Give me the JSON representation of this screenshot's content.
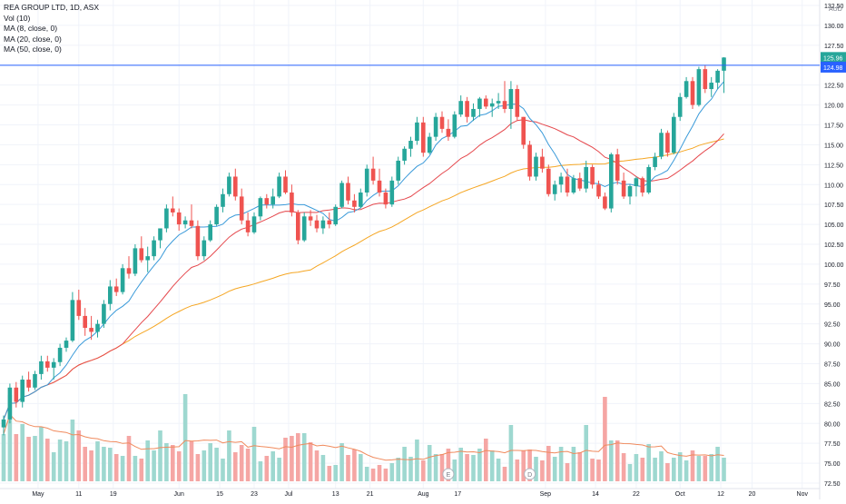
{
  "legend": {
    "symbol": "REA GROUP LTD, 1D, ASX",
    "volume": "Vol (10)",
    "ma8": "MA (8, close, 0)",
    "ma20": "MA (20, close, 0)",
    "ma50": "MA (50, close, 0)"
  },
  "chart_data": {
    "type": "candlestick",
    "currency": "AUD",
    "price_axis_ticks": [
      "72.50",
      "75.00",
      "77.50",
      "80.00",
      "82.50",
      "85.00",
      "87.50",
      "90.00",
      "92.50",
      "95.00",
      "97.50",
      "100.00",
      "102.50",
      "105.00",
      "107.50",
      "110.00",
      "112.50",
      "115.00",
      "117.50",
      "120.00",
      "122.50",
      "125.00",
      "127.50",
      "130.00",
      "132.50"
    ],
    "ylim": [
      72.5,
      132.5
    ],
    "time_axis_ticks": [
      "May",
      "11",
      "19",
      "Jun",
      "15",
      "23",
      "Jul",
      "13",
      "21",
      "Aug",
      "17",
      "Sep",
      "14",
      "22",
      "Oct",
      "12",
      "20",
      "Nov"
    ],
    "last_price_label": "125.96",
    "crosshair_price_label": "124.98",
    "crosshair_price": 124.98,
    "last_close": 125.96,
    "event_markers": [
      {
        "label": "E",
        "date": "Aug 07"
      },
      {
        "label": "D",
        "date": "Aug 27"
      }
    ],
    "volume_axis_ticks": [],
    "series": [
      {
        "name": "MA (8, close, 0)",
        "color": "#3a9ad9"
      },
      {
        "name": "MA (20, close, 0)",
        "color": "#e5484d"
      },
      {
        "name": "MA (50, close, 0)",
        "color": "#f5a623"
      }
    ],
    "candles": [
      [
        79.5,
        81,
        78.5,
        80.5,
        0.52
      ],
      [
        80.5,
        85,
        80,
        84.5,
        0.95
      ],
      [
        84.5,
        85.2,
        82,
        82.7,
        0.52
      ],
      [
        82.7,
        86,
        82,
        85.5,
        0.63
      ],
      [
        85.5,
        86.5,
        84,
        84.5,
        0.49
      ],
      [
        84.5,
        86.6,
        84.2,
        86.2,
        0.5
      ],
      [
        86.2,
        88.5,
        85.5,
        87.8,
        0.6
      ],
      [
        87.8,
        88.5,
        86.5,
        87,
        0.47
      ],
      [
        87,
        88.2,
        85.5,
        87.7,
        0.32
      ],
      [
        87.7,
        90,
        87.2,
        89.5,
        0.46
      ],
      [
        89.5,
        90.8,
        89,
        90.4,
        0.44
      ],
      [
        90.4,
        96.5,
        90.2,
        95.5,
        0.68
      ],
      [
        95.5,
        96.8,
        93,
        93.5,
        0.56
      ],
      [
        93.5,
        94.5,
        91,
        92,
        0.38
      ],
      [
        92,
        93.5,
        90.5,
        91.5,
        0.34
      ],
      [
        91.5,
        93,
        90.8,
        92.5,
        0.44
      ],
      [
        92.5,
        95.5,
        92,
        95,
        0.38
      ],
      [
        95,
        98,
        94.2,
        97.2,
        0.37
      ],
      [
        97.2,
        98.2,
        96,
        96.5,
        0.3
      ],
      [
        96.5,
        100,
        96.2,
        99.5,
        0.28
      ],
      [
        99.5,
        101,
        98.2,
        98.8,
        0.5
      ],
      [
        98.8,
        102.5,
        98.5,
        102,
        0.28
      ],
      [
        102,
        103.5,
        100.2,
        100.5,
        0.25
      ],
      [
        100.5,
        102.2,
        99,
        101,
        0.45
      ],
      [
        101,
        103.5,
        100.5,
        103,
        0.34
      ],
      [
        103,
        104.5,
        102,
        104.5,
        0.56
      ],
      [
        104.5,
        107.5,
        104,
        107,
        0.42
      ],
      [
        107,
        108.5,
        106,
        106.5,
        0.4
      ],
      [
        106.5,
        107,
        104.2,
        105,
        0.33
      ],
      [
        105,
        106,
        104.5,
        105.5,
        0.96
      ],
      [
        105.5,
        107.5,
        104.5,
        104.8,
        0.44
      ],
      [
        104.8,
        105.5,
        100.5,
        101,
        0.3
      ],
      [
        101,
        103.5,
        100.5,
        103,
        0.34
      ],
      [
        103,
        105.5,
        102.8,
        105,
        0.42
      ],
      [
        105,
        107.5,
        104.8,
        107.2,
        0.37
      ],
      [
        107.2,
        109.5,
        106.5,
        108.8,
        0.25
      ],
      [
        108.8,
        111.5,
        108.5,
        111,
        0.56
      ],
      [
        111,
        112,
        108,
        108.5,
        0.32
      ],
      [
        108.5,
        109.5,
        105,
        105.5,
        0.4
      ],
      [
        105.5,
        106.5,
        103.5,
        104,
        0.36
      ],
      [
        104,
        106.5,
        103.8,
        106,
        0.6
      ],
      [
        106,
        108.5,
        105.5,
        108.3,
        0.22
      ],
      [
        108.3,
        108.8,
        107,
        107.5,
        0.28
      ],
      [
        107.5,
        109.5,
        107,
        108.5,
        0.33
      ],
      [
        108.5,
        111.5,
        108.3,
        111,
        0.26
      ],
      [
        111,
        111.8,
        108.8,
        109,
        0.48
      ],
      [
        109,
        110,
        106,
        106.5,
        0.5
      ],
      [
        106.5,
        106.8,
        102.5,
        103,
        0.53
      ],
      [
        103,
        106.5,
        102.8,
        106,
        0.53
      ],
      [
        106,
        106.8,
        104.8,
        105.5,
        0.43
      ],
      [
        105.5,
        106.2,
        104,
        104.5,
        0.34
      ],
      [
        104.5,
        106,
        103.8,
        105.5,
        0.29
      ],
      [
        105.5,
        106.5,
        104.5,
        105,
        0.17
      ],
      [
        105,
        107.5,
        104.8,
        107.2,
        0.18
      ],
      [
        107.2,
        110.5,
        107,
        110.2,
        0.42
      ],
      [
        110.2,
        111,
        107.5,
        108,
        0.29
      ],
      [
        108,
        108.8,
        106.5,
        107.2,
        0.35
      ],
      [
        107.2,
        109.5,
        107,
        109,
        0.3
      ],
      [
        109,
        112.5,
        108.5,
        112,
        0.16
      ],
      [
        112,
        113.5,
        110,
        110.5,
        0.14
      ],
      [
        110.5,
        112,
        108.5,
        109,
        0.18
      ],
      [
        109,
        109.5,
        107,
        107.5,
        0.14
      ],
      [
        107.5,
        111,
        107.2,
        110.5,
        0.2
      ],
      [
        110.5,
        113.5,
        110,
        113,
        0.26
      ],
      [
        113,
        114.8,
        112.5,
        114.5,
        0.38
      ],
      [
        114.5,
        116,
        113.5,
        115.5,
        0.27
      ],
      [
        115.5,
        118.5,
        115,
        117.8,
        0.46
      ],
      [
        117.8,
        118.5,
        113.5,
        114,
        0.23
      ],
      [
        114,
        116.5,
        113.8,
        116,
        0.4
      ],
      [
        116,
        119,
        115.5,
        118.5,
        0.3
      ],
      [
        118.5,
        119.2,
        116.5,
        117,
        0.3
      ],
      [
        117,
        118.2,
        115.5,
        116,
        0.36
      ],
      [
        116,
        119.2,
        115.8,
        118.8,
        0.24
      ],
      [
        118.8,
        121.2,
        118.5,
        120.5,
        0.37
      ],
      [
        120.5,
        121,
        117.8,
        118.5,
        0.3
      ],
      [
        118.5,
        120.2,
        118,
        119.5,
        0.29
      ],
      [
        119.5,
        121,
        118.5,
        120.8,
        0.36
      ],
      [
        120.8,
        121.2,
        119.5,
        119.8,
        0.47
      ],
      [
        119.8,
        120.8,
        118.5,
        120.2,
        0.34
      ],
      [
        120.2,
        121.5,
        119.5,
        120.5,
        0.25
      ],
      [
        120.5,
        123,
        119,
        119.5,
        0.16
      ],
      [
        119.5,
        123,
        117,
        122,
        0.62
      ],
      [
        122,
        122.5,
        118,
        118.5,
        0.24
      ],
      [
        118.5,
        118.5,
        114.5,
        115,
        0.34
      ],
      [
        115,
        115.5,
        110.5,
        111,
        0.35
      ],
      [
        111,
        114,
        110.5,
        113.5,
        0.27
      ],
      [
        113.5,
        114.5,
        111.5,
        112,
        0.23
      ],
      [
        112,
        112.5,
        108.5,
        108.8,
        0.39
      ],
      [
        108.8,
        110.5,
        108,
        110,
        0.27
      ],
      [
        110,
        111.5,
        109,
        111,
        0.38
      ],
      [
        111,
        112,
        108.5,
        109,
        0.2
      ],
      [
        109,
        111.2,
        108.8,
        110.8,
        0.38
      ],
      [
        110.8,
        111.5,
        109.2,
        109.5,
        0.32
      ],
      [
        109.5,
        113,
        109,
        112.2,
        0.62
      ],
      [
        112.2,
        112.5,
        109.5,
        110,
        0.25
      ],
      [
        110,
        110.5,
        108.2,
        108.5,
        0.24
      ],
      [
        108.5,
        109,
        106.8,
        107,
        0.93
      ],
      [
        107,
        114,
        106.5,
        113.8,
        0.45
      ],
      [
        113.8,
        114.5,
        110,
        110.5,
        0.45
      ],
      [
        110.5,
        111.5,
        108.2,
        108.5,
        0.31
      ],
      [
        108.5,
        110,
        107.5,
        109.8,
        0.19
      ],
      [
        109.8,
        111,
        108.5,
        110.8,
        0.3
      ],
      [
        110.8,
        111,
        108.5,
        109,
        0.26
      ],
      [
        109,
        112.5,
        108.8,
        112.2,
        0.41
      ],
      [
        112.2,
        114,
        111.8,
        113.5,
        0.26
      ],
      [
        113.5,
        117,
        113.2,
        116.5,
        0.33
      ],
      [
        116.5,
        116.8,
        113.5,
        114,
        0.2
      ],
      [
        114,
        119,
        113.8,
        118.5,
        0.26
      ],
      [
        118.5,
        121.5,
        118,
        121,
        0.32
      ],
      [
        121,
        123.5,
        120.8,
        123,
        0.23
      ],
      [
        123,
        123.5,
        119.5,
        120,
        0.34
      ],
      [
        120,
        124.8,
        119.8,
        124.5,
        0.28
      ],
      [
        124.5,
        125,
        121.5,
        122,
        0.28
      ],
      [
        122,
        123.5,
        121,
        122.8,
        0.3
      ],
      [
        122.8,
        124.5,
        122,
        124.3,
        0.38
      ],
      [
        124.3,
        126,
        121.5,
        125.96,
        0.26
      ]
    ],
    "ma8_values": [],
    "ma20_values": [],
    "ma50_values": []
  },
  "colors": {
    "up": "#26a69a",
    "down": "#ef5350",
    "up_volume": "#9ed8d0",
    "down_volume": "#f5a6a4",
    "ma8": "#3a9ad9",
    "ma20": "#e5484d",
    "ma50": "#f5a623",
    "crosshair": "#2962ff",
    "grid": "#f0f3fa",
    "axis_text": "#131722"
  }
}
